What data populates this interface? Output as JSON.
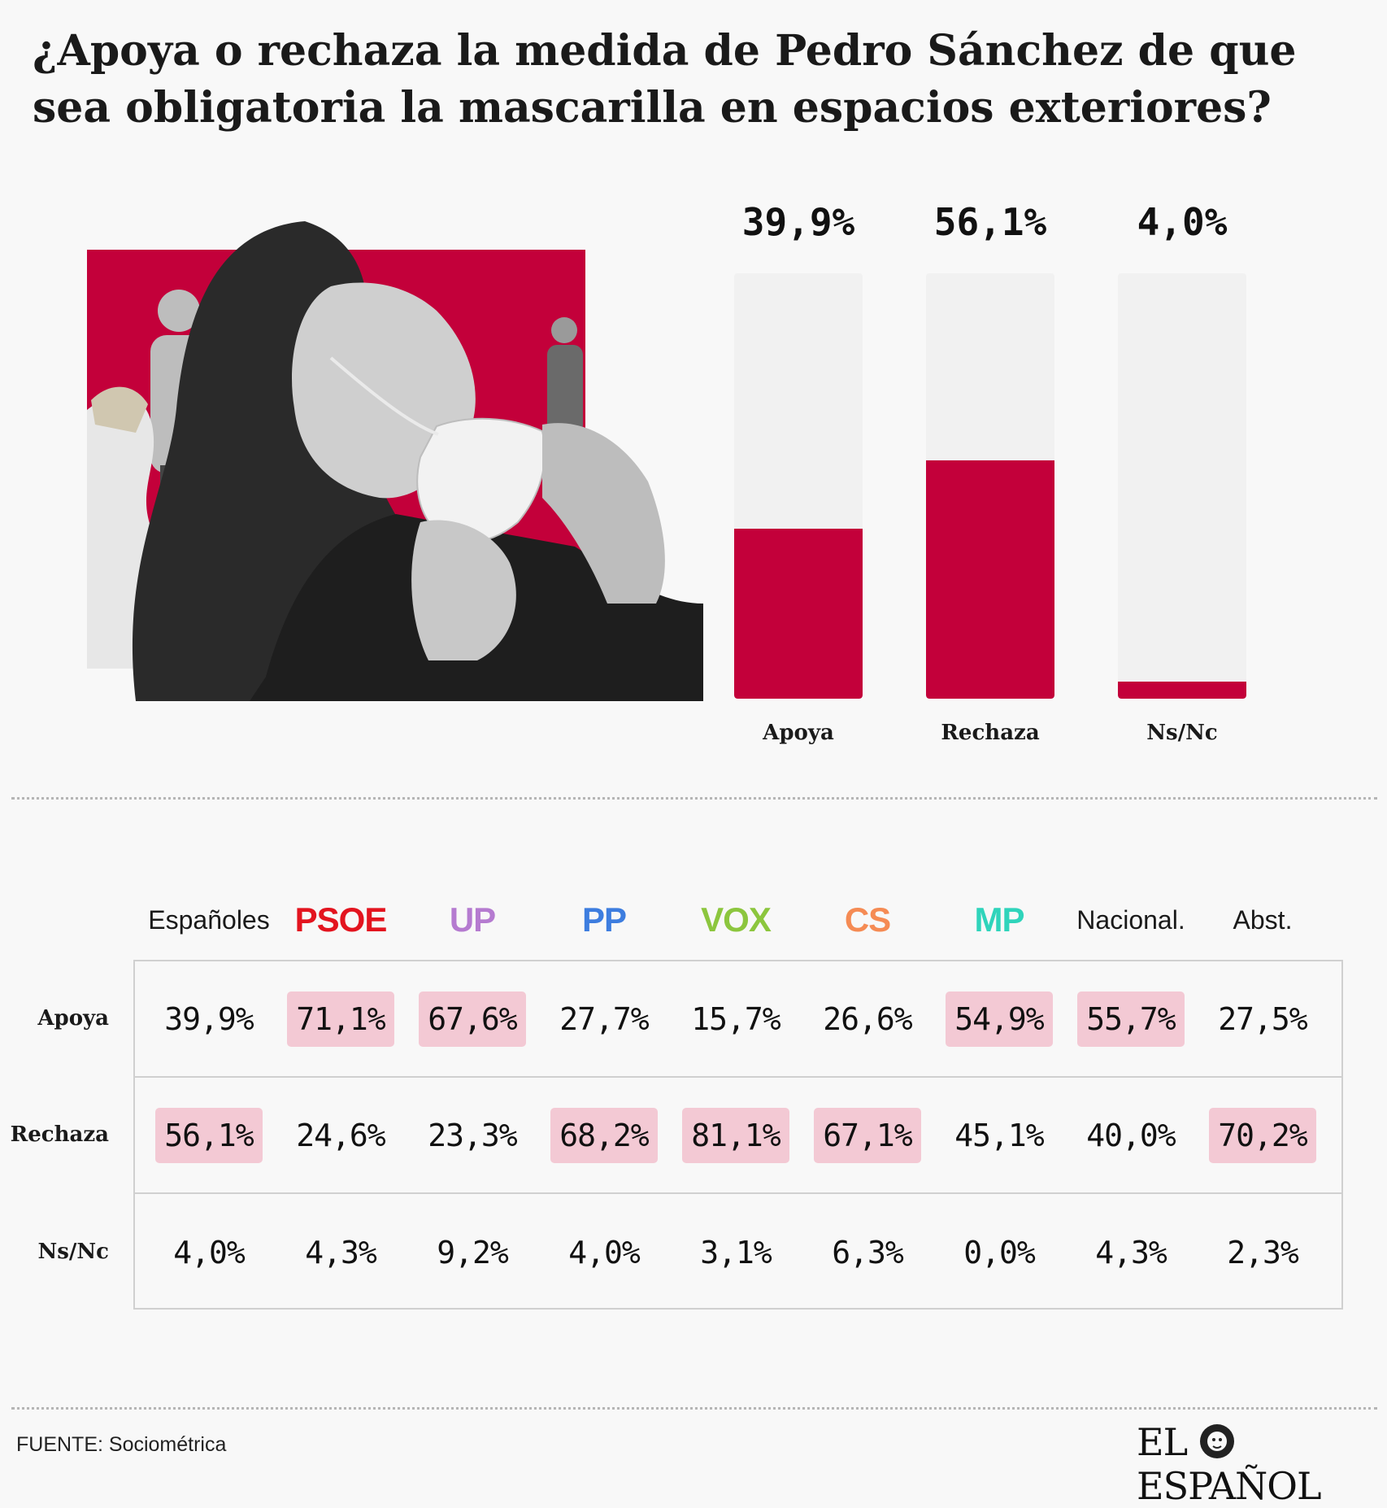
{
  "title": "¿Apoya o rechaza la medida de Pedro Sánchez de que sea obligatoria la mascarilla en espacios exteriores?",
  "colors": {
    "accent": "#c3003a",
    "highlight": "#f3c9d4",
    "track": "#f1f1f1"
  },
  "chart_data": {
    "type": "bar",
    "categories": [
      "Apoya",
      "Rechaza",
      "Ns/Nc"
    ],
    "values": [
      39.9,
      56.1,
      4.0
    ],
    "value_labels": [
      "39,9%",
      "56,1%",
      "4,0%"
    ],
    "ylim": [
      0,
      100
    ],
    "unit": "%"
  },
  "table": {
    "columns": [
      {
        "label": "Españoles",
        "color": "#1a1a1a",
        "party": false
      },
      {
        "label": "PSOE",
        "color": "#e3141f",
        "party": true
      },
      {
        "label": "UP",
        "color": "#b57bd0",
        "party": true
      },
      {
        "label": "PP",
        "color": "#3d7ddf",
        "party": true
      },
      {
        "label": "VOX",
        "color": "#8cc63e",
        "party": true
      },
      {
        "label": "CS",
        "color": "#f58b54",
        "party": true
      },
      {
        "label": "MP",
        "color": "#2fd4bb",
        "party": true
      },
      {
        "label": "Nacional.",
        "color": "#1a1a1a",
        "party": false
      },
      {
        "label": "Abst.",
        "color": "#1a1a1a",
        "party": false
      }
    ],
    "rows": [
      {
        "label": "Apoya",
        "values": [
          "39,9%",
          "71,1%",
          "67,6%",
          "27,7%",
          "15,7%",
          "26,6%",
          "54,9%",
          "55,7%",
          "27,5%"
        ],
        "highlight": [
          false,
          true,
          true,
          false,
          false,
          false,
          true,
          true,
          false
        ]
      },
      {
        "label": "Rechaza",
        "values": [
          "56,1%",
          "24,6%",
          "23,3%",
          "68,2%",
          "81,1%",
          "67,1%",
          "45,1%",
          "40,0%",
          "70,2%"
        ],
        "highlight": [
          true,
          false,
          false,
          true,
          true,
          true,
          false,
          false,
          true
        ]
      },
      {
        "label": "Ns/Nc",
        "values": [
          "4,0%",
          "4,3%",
          "9,2%",
          "4,0%",
          "3,1%",
          "6,3%",
          "0,0%",
          "4,3%",
          "2,3%"
        ],
        "highlight": [
          false,
          false,
          false,
          false,
          false,
          false,
          false,
          false,
          false
        ]
      }
    ]
  },
  "source": "FUENTE: Sociométrica",
  "logo": {
    "left": "EL",
    "right": "ESPAÑOL",
    "emblem": "lion-icon"
  }
}
